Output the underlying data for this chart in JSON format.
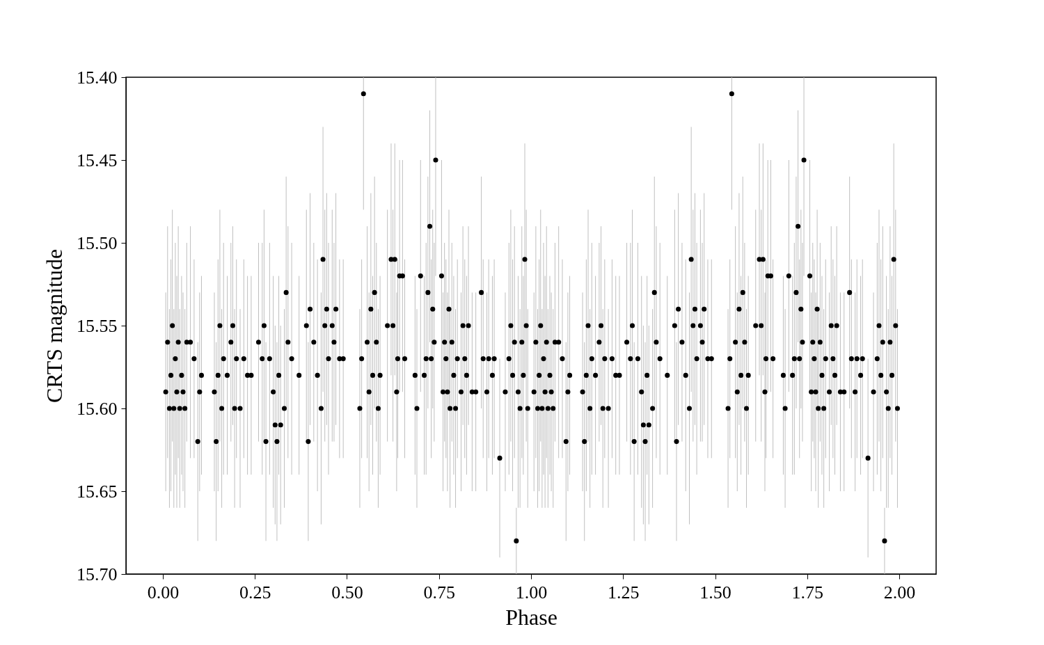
{
  "chart_data": {
    "type": "scatter",
    "xlabel": "Phase",
    "ylabel": "CRTS magnitude",
    "xlim": [
      -0.1,
      2.1
    ],
    "ylim": [
      15.7,
      15.4
    ],
    "xticks": [
      {
        "value": 0,
        "label": "0.00"
      },
      {
        "value": 0.25,
        "label": "0.25"
      },
      {
        "value": 0.5,
        "label": "0.50"
      },
      {
        "value": 0.75,
        "label": "0.75"
      },
      {
        "value": 1,
        "label": "1.00"
      },
      {
        "value": 1.25,
        "label": "1.25"
      },
      {
        "value": 1.5,
        "label": "1.50"
      },
      {
        "value": 1.75,
        "label": "1.75"
      },
      {
        "value": 2,
        "label": "2.00"
      }
    ],
    "yticks": [
      {
        "value": 15.4,
        "label": "15.40"
      },
      {
        "value": 15.45,
        "label": "15.45"
      },
      {
        "value": 15.5,
        "label": "15.50"
      },
      {
        "value": 15.55,
        "label": "15.55"
      },
      {
        "value": 15.6,
        "label": "15.60"
      },
      {
        "value": 15.65,
        "label": "15.65"
      },
      {
        "value": 15.7,
        "label": "15.70"
      }
    ],
    "grid": false,
    "marker": "circle",
    "series": [
      {
        "color": "#000000",
        "x": [
          0.008,
          0.013,
          0.018,
          0.022,
          0.026,
          0.03,
          0.034,
          0.038,
          0.042,
          0.046,
          0.051,
          0.055,
          0.06,
          0.065,
          0.075,
          0.085,
          0.095,
          0.1,
          0.105,
          0.14,
          0.145,
          0.15,
          0.155,
          0.16,
          0.165,
          0.175,
          0.185,
          0.19,
          0.195,
          0.2,
          0.21,
          0.22,
          0.23,
          0.24,
          0.26,
          0.27,
          0.275,
          0.28,
          0.29,
          0.3,
          0.305,
          0.31,
          0.315,
          0.32,
          0.33,
          0.335,
          0.34,
          0.35,
          0.37,
          0.39,
          0.395,
          0.4,
          0.41,
          0.42,
          0.43,
          0.435,
          0.44,
          0.445,
          0.45,
          0.46,
          0.465,
          0.47,
          0.48,
          0.49,
          0.535,
          0.54,
          0.545,
          0.555,
          0.56,
          0.565,
          0.57,
          0.575,
          0.58,
          0.585,
          0.59,
          0.61,
          0.62,
          0.625,
          0.63,
          0.635,
          0.638,
          0.643,
          0.651,
          0.657,
          0.685,
          0.69,
          0.7,
          0.71,
          0.715,
          0.72,
          0.725,
          0.729,
          0.733,
          0.737,
          0.741,
          0.757,
          0.761,
          0.765,
          0.769,
          0.773,
          0.777,
          0.78,
          0.785,
          0.79,
          0.795,
          0.8,
          0.81,
          0.815,
          0.82,
          0.825,
          0.83,
          0.84,
          0.85,
          0.865,
          0.87,
          0.88,
          0.885,
          0.895,
          0.9,
          0.915,
          0.93,
          0.94,
          0.945,
          0.95,
          0.955,
          0.96,
          0.965,
          0.97,
          0.975,
          0.979,
          0.983,
          0.987,
          0.991,
          1.008,
          1.013,
          1.018,
          1.022,
          1.026,
          1.03,
          1.034,
          1.038,
          1.042,
          1.046,
          1.051,
          1.055,
          1.06,
          1.065,
          1.075,
          1.085,
          1.095,
          1.1,
          1.105,
          1.14,
          1.145,
          1.15,
          1.155,
          1.16,
          1.165,
          1.175,
          1.185,
          1.19,
          1.195,
          1.2,
          1.21,
          1.22,
          1.23,
          1.24,
          1.26,
          1.27,
          1.275,
          1.28,
          1.29,
          1.3,
          1.305,
          1.31,
          1.315,
          1.32,
          1.33,
          1.335,
          1.34,
          1.35,
          1.37,
          1.39,
          1.395,
          1.4,
          1.41,
          1.42,
          1.43,
          1.435,
          1.44,
          1.445,
          1.45,
          1.46,
          1.465,
          1.47,
          1.48,
          1.49,
          1.535,
          1.54,
          1.545,
          1.555,
          1.56,
          1.565,
          1.57,
          1.575,
          1.58,
          1.585,
          1.59,
          1.61,
          1.62,
          1.625,
          1.63,
          1.635,
          1.638,
          1.643,
          1.651,
          1.657,
          1.685,
          1.69,
          1.7,
          1.71,
          1.715,
          1.72,
          1.725,
          1.729,
          1.733,
          1.737,
          1.741,
          1.757,
          1.761,
          1.765,
          1.769,
          1.773,
          1.777,
          1.78,
          1.785,
          1.79,
          1.795,
          1.8,
          1.81,
          1.815,
          1.82,
          1.825,
          1.83,
          1.84,
          1.85,
          1.865,
          1.87,
          1.88,
          1.885,
          1.895,
          1.9,
          1.915,
          1.93,
          1.94,
          1.945,
          1.95,
          1.955,
          1.96,
          1.965,
          1.97,
          1.975,
          1.98,
          1.985,
          1.99,
          1.995
        ],
        "values": [
          15.59,
          15.56,
          15.6,
          15.58,
          15.55,
          15.6,
          15.57,
          15.59,
          15.56,
          15.6,
          15.58,
          15.59,
          15.6,
          15.56,
          15.56,
          15.57,
          15.62,
          15.59,
          15.58,
          15.59,
          15.62,
          15.58,
          15.55,
          15.6,
          15.57,
          15.58,
          15.56,
          15.55,
          15.6,
          15.57,
          15.6,
          15.57,
          15.58,
          15.58,
          15.56,
          15.57,
          15.55,
          15.62,
          15.57,
          15.59,
          15.61,
          15.62,
          15.58,
          15.61,
          15.6,
          15.53,
          15.56,
          15.57,
          15.58,
          15.55,
          15.62,
          15.54,
          15.56,
          15.58,
          15.6,
          15.51,
          15.55,
          15.54,
          15.57,
          15.55,
          15.56,
          15.54,
          15.57,
          15.57,
          15.6,
          15.57,
          15.41,
          15.56,
          15.59,
          15.54,
          15.58,
          15.53,
          15.56,
          15.6,
          15.58,
          15.55,
          15.51,
          15.55,
          15.51,
          15.59,
          15.57,
          15.52,
          15.52,
          15.57,
          15.58,
          15.6,
          15.52,
          15.58,
          15.57,
          15.53,
          15.49,
          15.57,
          15.54,
          15.56,
          15.45,
          15.52,
          15.59,
          15.56,
          15.57,
          15.59,
          15.54,
          15.6,
          15.56,
          15.58,
          15.6,
          15.57,
          15.59,
          15.55,
          15.57,
          15.58,
          15.55,
          15.59,
          15.59,
          15.53,
          15.57,
          15.59,
          15.57,
          15.58,
          15.57,
          15.63,
          15.59,
          15.57,
          15.55,
          15.58,
          15.56,
          15.68,
          15.59,
          15.6,
          15.56,
          15.58,
          15.51,
          15.55,
          15.6,
          15.59,
          15.56,
          15.6,
          15.58,
          15.55,
          15.6,
          15.57,
          15.59,
          15.56,
          15.6,
          15.58,
          15.59,
          15.6,
          15.56,
          15.56,
          15.57,
          15.62,
          15.59,
          15.58,
          15.59,
          15.62,
          15.58,
          15.55,
          15.6,
          15.57,
          15.58,
          15.56,
          15.55,
          15.6,
          15.57,
          15.6,
          15.57,
          15.58,
          15.58,
          15.56,
          15.57,
          15.55,
          15.62,
          15.57,
          15.59,
          15.61,
          15.62,
          15.58,
          15.61,
          15.6,
          15.53,
          15.56,
          15.57,
          15.58,
          15.55,
          15.62,
          15.54,
          15.56,
          15.58,
          15.6,
          15.51,
          15.55,
          15.54,
          15.57,
          15.55,
          15.56,
          15.54,
          15.57,
          15.57,
          15.6,
          15.57,
          15.41,
          15.56,
          15.59,
          15.54,
          15.58,
          15.53,
          15.56,
          15.6,
          15.58,
          15.55,
          15.51,
          15.55,
          15.51,
          15.59,
          15.57,
          15.52,
          15.52,
          15.57,
          15.58,
          15.6,
          15.52,
          15.58,
          15.57,
          15.53,
          15.49,
          15.57,
          15.54,
          15.56,
          15.45,
          15.52,
          15.59,
          15.56,
          15.57,
          15.59,
          15.54,
          15.6,
          15.56,
          15.58,
          15.6,
          15.57,
          15.59,
          15.55,
          15.57,
          15.58,
          15.55,
          15.59,
          15.59,
          15.53,
          15.57,
          15.59,
          15.57,
          15.58,
          15.57,
          15.63,
          15.59,
          15.57,
          15.55,
          15.58,
          15.56,
          15.68,
          15.59,
          15.6,
          15.56,
          15.58,
          15.51,
          15.55,
          15.6
        ],
        "errors": [
          0.06,
          0.07,
          0.06,
          0.07,
          0.07,
          0.06,
          0.07,
          0.07,
          0.07,
          0.06,
          0.06,
          0.06,
          0.06,
          0.06,
          0.07,
          0.06,
          0.06,
          0.06,
          0.06,
          0.06,
          0.06,
          0.07,
          0.07,
          0.06,
          0.07,
          0.06,
          0.06,
          0.06,
          0.06,
          0.06,
          0.06,
          0.06,
          0.06,
          0.06,
          0.06,
          0.07,
          0.07,
          0.06,
          0.07,
          0.07,
          0.06,
          0.06,
          0.06,
          0.06,
          0.06,
          0.07,
          0.07,
          0.07,
          0.06,
          0.07,
          0.06,
          0.07,
          0.06,
          0.07,
          0.07,
          0.08,
          0.07,
          0.07,
          0.07,
          0.07,
          0.06,
          0.07,
          0.06,
          0.06,
          0.06,
          0.06,
          [
            15.4,
            15.48
          ],
          0.07,
          0.06,
          0.07,
          0.06,
          0.07,
          0.06,
          0.06,
          0.06,
          0.07,
          0.07,
          0.07,
          0.07,
          0.06,
          0.06,
          0.07,
          0.07,
          0.06,
          0.06,
          0.06,
          0.07,
          0.06,
          0.07,
          0.07,
          0.07,
          0.06,
          0.06,
          0.06,
          [
            15.4,
            15.52
          ],
          0.07,
          0.06,
          0.06,
          0.06,
          0.06,
          0.06,
          0.06,
          0.06,
          0.06,
          0.06,
          0.06,
          0.06,
          0.06,
          0.06,
          0.06,
          0.06,
          0.06,
          0.06,
          0.07,
          0.06,
          0.06,
          0.06,
          0.06,
          0.06,
          0.06,
          0.06,
          0.07,
          0.07,
          0.07,
          0.07,
          0.02,
          0.07,
          0.06,
          0.07,
          0.06,
          0.07,
          0.07,
          0.06,
          0.06,
          0.07,
          0.06,
          0.07,
          0.07,
          0.06,
          0.07,
          0.07,
          0.07,
          0.06,
          0.06,
          0.06,
          0.06,
          0.06,
          0.07,
          0.06,
          0.06,
          0.06,
          0.06,
          0.06,
          0.06,
          0.07,
          0.07,
          0.06,
          0.07,
          0.06,
          0.06,
          0.06,
          0.06,
          0.06,
          0.06,
          0.06,
          0.06,
          0.06,
          0.06,
          0.07,
          0.07,
          0.06,
          0.07,
          0.07,
          0.06,
          0.06,
          0.06,
          0.06,
          0.06,
          0.07,
          0.07,
          0.07,
          0.06,
          0.07,
          0.06,
          0.07,
          0.06,
          0.07,
          0.07,
          0.08,
          0.07,
          0.07,
          0.07,
          0.07,
          0.06,
          0.07,
          0.06,
          0.06,
          0.06,
          0.06,
          [
            15.4,
            15.48
          ],
          0.07,
          0.06,
          0.07,
          0.06,
          0.07,
          0.06,
          0.06,
          0.06,
          0.07,
          0.07,
          0.07,
          0.07,
          0.06,
          0.06,
          0.07,
          0.07,
          0.06,
          0.06,
          0.06,
          0.07,
          0.06,
          0.07,
          0.07,
          0.07,
          0.06,
          0.06,
          0.06,
          [
            15.4,
            15.52
          ],
          0.07,
          0.06,
          0.06,
          0.06,
          0.06,
          0.06,
          0.06,
          0.06,
          0.06,
          0.06,
          0.06,
          0.06,
          0.06,
          0.06,
          0.06,
          0.06,
          0.06,
          0.06,
          0.07,
          0.06,
          0.06,
          0.06,
          0.06,
          0.06,
          0.06,
          0.06,
          0.07,
          0.07,
          0.07,
          0.07,
          0.02,
          0.07,
          0.06,
          0.07,
          0.06,
          0.07,
          0.07,
          0.06
        ]
      }
    ]
  }
}
